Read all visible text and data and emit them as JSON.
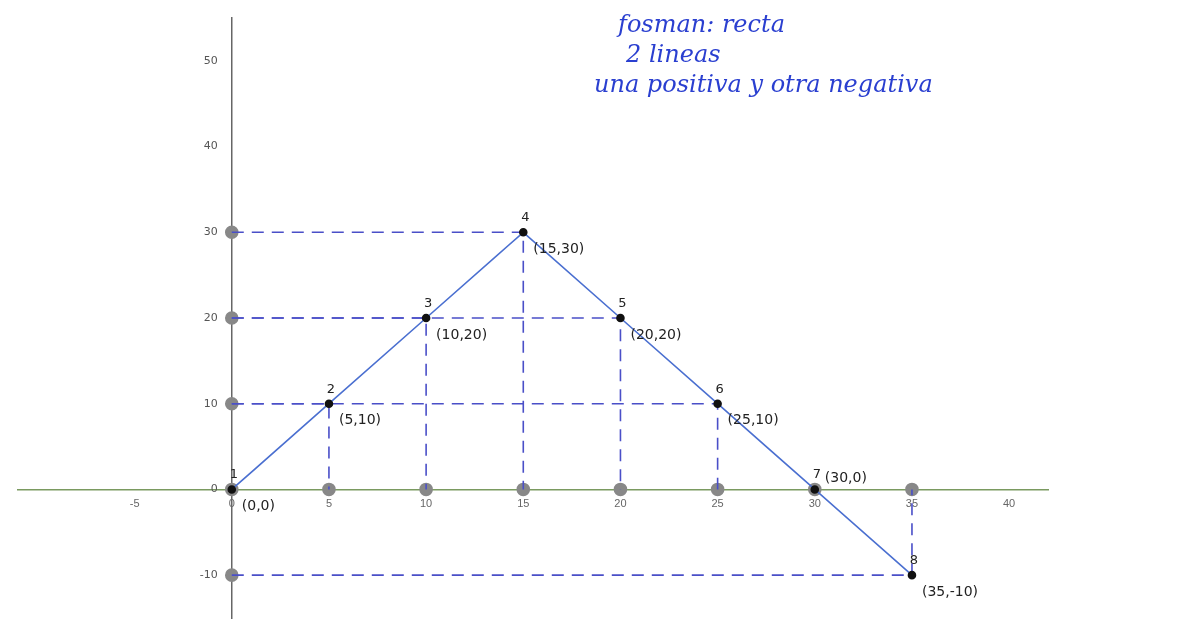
{
  "chart_data": {
    "type": "line",
    "xlim": [
      -11,
      42
    ],
    "ylim": [
      -15,
      55
    ],
    "xticks": [
      -5,
      0,
      5,
      10,
      15,
      20,
      25,
      30,
      35,
      40
    ],
    "yticks": [
      -10,
      0,
      10,
      20,
      30,
      40,
      50
    ],
    "grid": false,
    "legend": false,
    "series": [
      {
        "type": "line",
        "x": [
          0,
          5,
          10,
          15,
          20,
          25,
          30,
          35
        ],
        "values": [
          0,
          10,
          20,
          30,
          20,
          10,
          0,
          -10
        ],
        "color": "#4a6fd0",
        "marker": "circle"
      },
      {
        "type": "line",
        "x": [
          0,
          5,
          5
        ],
        "values": [
          10,
          10,
          0
        ],
        "color": "#4a4fc8",
        "marker": "none",
        "line_style": "dashed"
      },
      {
        "type": "line",
        "x": [
          0,
          10,
          10
        ],
        "values": [
          20,
          20,
          0
        ],
        "color": "#4a4fc8",
        "marker": "none",
        "line_style": "dashed"
      },
      {
        "type": "line",
        "x": [
          0,
          15,
          15
        ],
        "values": [
          30,
          30,
          0
        ],
        "color": "#4a4fc8",
        "marker": "none",
        "line_style": "dashed"
      },
      {
        "type": "line",
        "x": [
          0,
          20,
          20
        ],
        "values": [
          20,
          20,
          0
        ],
        "color": "#4a4fc8",
        "marker": "none",
        "line_style": "dashed"
      },
      {
        "type": "line",
        "x": [
          0,
          25,
          25
        ],
        "values": [
          10,
          10,
          0
        ],
        "color": "#4a4fc8",
        "marker": "none",
        "line_style": "dashed"
      },
      {
        "type": "line",
        "x": [
          0,
          35,
          35
        ],
        "values": [
          -10,
          -10,
          0
        ],
        "color": "#4a4fc8",
        "marker": "none",
        "line_style": "dashed"
      },
      {
        "type": "scatter",
        "x": [
          5,
          10,
          15,
          20,
          25,
          30,
          35,
          0,
          0,
          0,
          0,
          0
        ],
        "values": [
          0,
          0,
          0,
          0,
          0,
          0,
          0,
          0,
          10,
          20,
          30,
          -10
        ],
        "color": "#888888",
        "marker": "circle"
      }
    ],
    "annotations": [
      "fosman: recta",
      "2 lineas",
      "una positiva y otra negativa",
      {
        "text": "1",
        "x": 0,
        "y": 0
      },
      {
        "text": "(0,0)",
        "x": 0,
        "y": 0
      },
      {
        "text": "2",
        "x": 5,
        "y": 10
      },
      {
        "text": "(5,10)",
        "x": 5,
        "y": 10
      },
      {
        "text": "3",
        "x": 10,
        "y": 20
      },
      {
        "text": "(10,20)",
        "x": 10,
        "y": 20
      },
      {
        "text": "4",
        "x": 15,
        "y": 30
      },
      {
        "text": "(15,30)",
        "x": 15,
        "y": 30
      },
      {
        "text": "5",
        "x": 20,
        "y": 20
      },
      {
        "text": "(20,20)",
        "x": 20,
        "y": 20
      },
      {
        "text": "6",
        "x": 25,
        "y": 10
      },
      {
        "text": "(25,10)",
        "x": 25,
        "y": 10
      },
      {
        "text": "7",
        "x": 30,
        "y": 0
      },
      {
        "text": "(30,0)",
        "x": 30,
        "y": 0
      },
      {
        "text": "8",
        "x": 35,
        "y": -10
      },
      {
        "text": "(35,-10)",
        "x": 35,
        "y": -10
      }
    ]
  }
}
